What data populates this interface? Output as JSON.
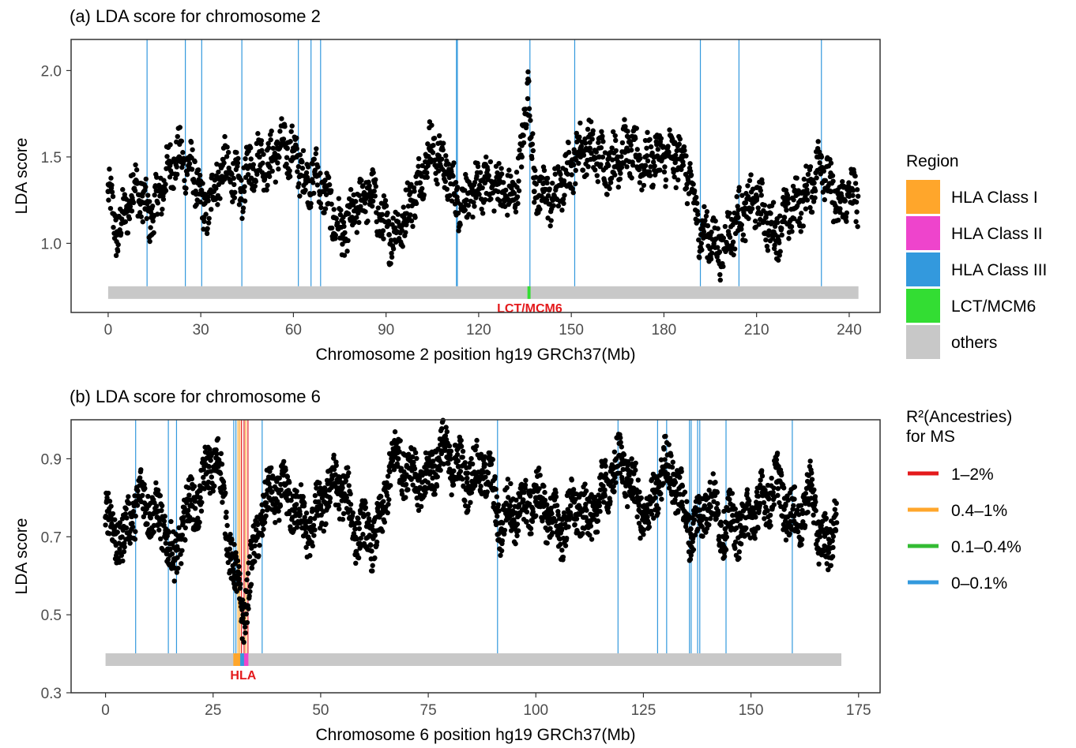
{
  "chart_data": [
    {
      "type": "scatter",
      "title": "(a) LDA score for chromosome 2",
      "xlabel": "Chromosome 2 position hg19 GRCh37(Mb)",
      "ylabel": "LDA score",
      "xlim": [
        -12,
        250
      ],
      "ylim": [
        0.6,
        2.18
      ],
      "xticks": [
        0,
        30,
        60,
        90,
        120,
        150,
        180,
        210,
        240
      ],
      "yticks": [
        1.0,
        1.5,
        2.0
      ],
      "ytick_labels": [
        "1.0",
        "1.5",
        "2.0"
      ],
      "grid": false,
      "region_bar": {
        "start": 0,
        "end": 243,
        "y": 0.715,
        "color": "#c8c8c8"
      },
      "highlight_regions": [
        {
          "region": "LCT/MCM6",
          "start": 135.8,
          "end": 136.8,
          "color": "#33dd33"
        }
      ],
      "region_labels": [
        {
          "text": "LCT/MCM6",
          "x": 136.5
        }
      ],
      "vlines": [
        {
          "x": 12.6,
          "ymax": 2.18,
          "color": "#3399dd"
        },
        {
          "x": 25.0,
          "ymax": 2.18,
          "color": "#3399dd"
        },
        {
          "x": 30.3,
          "ymax": 2.18,
          "color": "#3399dd"
        },
        {
          "x": 43.3,
          "ymax": 2.18,
          "color": "#3399dd"
        },
        {
          "x": 61.6,
          "ymax": 2.18,
          "color": "#3399dd"
        },
        {
          "x": 65.7,
          "ymax": 2.18,
          "color": "#3399dd"
        },
        {
          "x": 68.8,
          "ymax": 2.18,
          "color": "#3399dd"
        },
        {
          "x": 112.8,
          "ymax": 2.18,
          "color": "#3399dd"
        },
        {
          "x": 113.1,
          "ymax": 2.18,
          "color": "#3399dd"
        },
        {
          "x": 136.6,
          "ymax": 2.18,
          "color": "#3399dd"
        },
        {
          "x": 151.1,
          "ymax": 2.18,
          "color": "#3399dd"
        },
        {
          "x": 191.8,
          "ymax": 2.18,
          "color": "#3399dd"
        },
        {
          "x": 204.3,
          "ymax": 2.18,
          "color": "#3399dd"
        },
        {
          "x": 231.0,
          "ymax": 2.18,
          "color": "#3399dd"
        }
      ],
      "series": [
        {
          "x": [
            0,
            3,
            6,
            9,
            12,
            14,
            17,
            20,
            23,
            26,
            29,
            31,
            34,
            37,
            40,
            43,
            46,
            49,
            52,
            55,
            58,
            61,
            64,
            67,
            70,
            73,
            76,
            79,
            82,
            85,
            88,
            91,
            95,
            98,
            101,
            104,
            107,
            110,
            113,
            116,
            119,
            122,
            125,
            128,
            131,
            134,
            136,
            138,
            141,
            144,
            147,
            150,
            153,
            156,
            159,
            162,
            165,
            168,
            171,
            174,
            177,
            180,
            183,
            186,
            189,
            192,
            195,
            198,
            201,
            204,
            207,
            210,
            213,
            216,
            219,
            222,
            225,
            228,
            231,
            234,
            237,
            240,
            243
          ],
          "y": [
            1.3,
            1.05,
            1.2,
            1.35,
            1.2,
            1.15,
            1.3,
            1.45,
            1.5,
            1.45,
            1.35,
            1.15,
            1.3,
            1.45,
            1.4,
            1.3,
            1.45,
            1.5,
            1.45,
            1.55,
            1.55,
            1.5,
            1.35,
            1.4,
            1.3,
            1.15,
            1.05,
            1.15,
            1.25,
            1.3,
            1.15,
            1.05,
            1.1,
            1.25,
            1.35,
            1.55,
            1.5,
            1.4,
            1.25,
            1.25,
            1.3,
            1.35,
            1.35,
            1.3,
            1.25,
            1.5,
            1.95,
            1.3,
            1.3,
            1.25,
            1.35,
            1.45,
            1.55,
            1.55,
            1.5,
            1.45,
            1.5,
            1.55,
            1.5,
            1.45,
            1.5,
            1.5,
            1.5,
            1.5,
            1.3,
            1.05,
            1.05,
            0.95,
            1.05,
            1.15,
            1.2,
            1.25,
            1.15,
            1.05,
            1.15,
            1.2,
            1.25,
            1.35,
            1.5,
            1.3,
            1.2,
            1.3,
            1.25
          ],
          "color": "#000000"
        }
      ]
    },
    {
      "type": "scatter",
      "title": "(b) LDA score for chromosome 6",
      "xlabel": "Chromosome 6 position hg19 GRCh37(Mb)",
      "ylabel": "LDA score",
      "xlim": [
        -8,
        180
      ],
      "ylim": [
        0.3,
        1.0
      ],
      "xticks": [
        0,
        25,
        50,
        75,
        100,
        125,
        150,
        175
      ],
      "yticks": [
        0.3,
        0.5,
        0.7,
        0.9
      ],
      "ytick_labels": [
        "0.3",
        "0.5",
        "0.7",
        "0.9"
      ],
      "grid": false,
      "region_bar": {
        "start": 0,
        "end": 171,
        "y": 0.385,
        "color": "#c8c8c8"
      },
      "highlight_regions": [
        {
          "region": "HLA Class I",
          "start": 29.7,
          "end": 31.3,
          "color": "#ffa62b"
        },
        {
          "region": "HLA Class III",
          "start": 31.3,
          "end": 32.2,
          "color": "#3399dd"
        },
        {
          "region": "HLA Class II",
          "start": 32.2,
          "end": 33.2,
          "color": "#ee44cc"
        }
      ],
      "region_labels": [
        {
          "text": "HLA",
          "x": 32.0
        }
      ],
      "vlines": [
        {
          "x": 7.0,
          "ymax": 1.0,
          "color": "#3399dd"
        },
        {
          "x": 14.6,
          "ymax": 1.0,
          "color": "#3399dd"
        },
        {
          "x": 16.5,
          "ymax": 1.0,
          "color": "#3399dd"
        },
        {
          "x": 29.8,
          "ymax": 1.0,
          "color": "#3399dd"
        },
        {
          "x": 30.3,
          "ymax": 1.0,
          "color": "#3399dd"
        },
        {
          "x": 30.8,
          "ymax": 1.0,
          "color": "#ffa62b"
        },
        {
          "x": 31.2,
          "ymax": 1.0,
          "color": "#ffa62b"
        },
        {
          "x": 31.6,
          "ymax": 1.0,
          "color": "#e41a1c"
        },
        {
          "x": 32.2,
          "ymax": 1.0,
          "color": "#e41a1c"
        },
        {
          "x": 32.6,
          "ymax": 1.0,
          "color": "#ffa62b"
        },
        {
          "x": 33.1,
          "ymax": 1.0,
          "color": "#e41a1c"
        },
        {
          "x": 36.4,
          "ymax": 1.0,
          "color": "#3399dd"
        },
        {
          "x": 91.1,
          "ymax": 1.0,
          "color": "#3399dd"
        },
        {
          "x": 119.1,
          "ymax": 1.0,
          "color": "#3399dd"
        },
        {
          "x": 128.3,
          "ymax": 1.0,
          "color": "#3399dd"
        },
        {
          "x": 130.4,
          "ymax": 1.0,
          "color": "#3399dd"
        },
        {
          "x": 135.7,
          "ymax": 1.0,
          "color": "#3399dd"
        },
        {
          "x": 136.1,
          "ymax": 1.0,
          "color": "#3399dd"
        },
        {
          "x": 137.6,
          "ymax": 1.0,
          "color": "#3399dd"
        },
        {
          "x": 138.1,
          "ymax": 1.0,
          "color": "#3399dd"
        },
        {
          "x": 144.2,
          "ymax": 1.0,
          "color": "#3399dd"
        },
        {
          "x": 159.6,
          "ymax": 1.0,
          "color": "#3399dd"
        }
      ],
      "series": [
        {
          "x": [
            0,
            2,
            4,
            6,
            8,
            10,
            12,
            14,
            16,
            18,
            20,
            22,
            24,
            26,
            28,
            30,
            32,
            34,
            36,
            38,
            40,
            42,
            44,
            46,
            48,
            50,
            52,
            54,
            56,
            58,
            62,
            64,
            66,
            68,
            70,
            72,
            74,
            76,
            78,
            80,
            82,
            84,
            86,
            88,
            90,
            92,
            94,
            96,
            98,
            100,
            102,
            104,
            106,
            108,
            110,
            112,
            114,
            116,
            118,
            120,
            122,
            124,
            126,
            128,
            130,
            132,
            134,
            136,
            138,
            140,
            142,
            144,
            146,
            148,
            150,
            152,
            154,
            156,
            158,
            160,
            162,
            164,
            166,
            168,
            170
          ],
          "y": [
            0.75,
            0.72,
            0.68,
            0.76,
            0.8,
            0.78,
            0.75,
            0.72,
            0.62,
            0.74,
            0.78,
            0.8,
            0.88,
            0.9,
            0.75,
            0.6,
            0.5,
            0.62,
            0.75,
            0.8,
            0.82,
            0.8,
            0.78,
            0.74,
            0.72,
            0.78,
            0.82,
            0.84,
            0.8,
            0.72,
            0.7,
            0.72,
            0.88,
            0.9,
            0.88,
            0.86,
            0.82,
            0.88,
            0.92,
            0.9,
            0.88,
            0.85,
            0.86,
            0.88,
            0.82,
            0.72,
            0.78,
            0.76,
            0.78,
            0.8,
            0.78,
            0.74,
            0.72,
            0.76,
            0.78,
            0.74,
            0.78,
            0.82,
            0.86,
            0.9,
            0.84,
            0.78,
            0.74,
            0.82,
            0.88,
            0.86,
            0.78,
            0.72,
            0.74,
            0.8,
            0.76,
            0.72,
            0.74,
            0.72,
            0.76,
            0.78,
            0.8,
            0.84,
            0.78,
            0.74,
            0.76,
            0.82,
            0.7,
            0.66,
            0.8
          ],
          "color": "#000000"
        }
      ]
    }
  ],
  "legend_region": {
    "title": "Region",
    "items": [
      {
        "label": "HLA Class I",
        "color": "#ffa62b"
      },
      {
        "label": "HLA Class II",
        "color": "#ee44cc"
      },
      {
        "label": "HLA Class III",
        "color": "#3399dd"
      },
      {
        "label": "LCT/MCM6",
        "color": "#33dd33"
      },
      {
        "label": "others",
        "color": "#c8c8c8"
      }
    ]
  },
  "legend_r2": {
    "title_line1": "R²(Ancestries)",
    "title_line2": "for MS",
    "items": [
      {
        "label": "1–2%",
        "color": "#e41a1c"
      },
      {
        "label": "0.4–1%",
        "color": "#ffa62b"
      },
      {
        "label": "0.1–0.4%",
        "color": "#33bb33"
      },
      {
        "label": "0–0.1%",
        "color": "#3399dd"
      }
    ]
  }
}
